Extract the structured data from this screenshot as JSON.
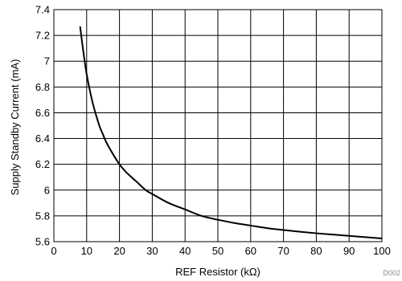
{
  "chart_data": {
    "type": "line",
    "title": "",
    "xlabel": "REF Resistor (kΩ)",
    "ylabel": "Supply Standby Current (mA)",
    "xlim": [
      0,
      100
    ],
    "ylim": [
      5.6,
      7.4
    ],
    "x_ticks": [
      0,
      10,
      20,
      30,
      40,
      50,
      60,
      70,
      80,
      90,
      100
    ],
    "y_ticks": [
      5.6,
      5.8,
      6,
      6.2,
      6.4,
      6.6,
      6.8,
      7,
      7.2,
      7.4
    ],
    "x_tick_labels": [
      "0",
      "10",
      "20",
      "30",
      "40",
      "50",
      "60",
      "70",
      "80",
      "90",
      "100"
    ],
    "y_tick_labels": [
      "5.6",
      "5.8",
      "6",
      "6.2",
      "6.4",
      "6.6",
      "6.8",
      "7",
      "7.2",
      "7.4"
    ],
    "grid": true,
    "legend": "none",
    "line_color": "#000000",
    "grid_color": "#000000",
    "series": [
      {
        "x": [
          8,
          9,
          10,
          11,
          12,
          13,
          14,
          15,
          16,
          18,
          20,
          22,
          25,
          28,
          30,
          35,
          40,
          45,
          50,
          55,
          60,
          65,
          70,
          75,
          80,
          85,
          90,
          95,
          100
        ],
        "values": [
          7.27,
          7.07,
          6.9,
          6.77,
          6.66,
          6.57,
          6.49,
          6.43,
          6.37,
          6.28,
          6.2,
          6.14,
          6.07,
          6.0,
          5.97,
          5.9,
          5.85,
          5.8,
          5.77,
          5.745,
          5.725,
          5.705,
          5.69,
          5.677,
          5.665,
          5.655,
          5.645,
          5.635,
          5.625
        ]
      }
    ],
    "figure_id": "D002"
  }
}
